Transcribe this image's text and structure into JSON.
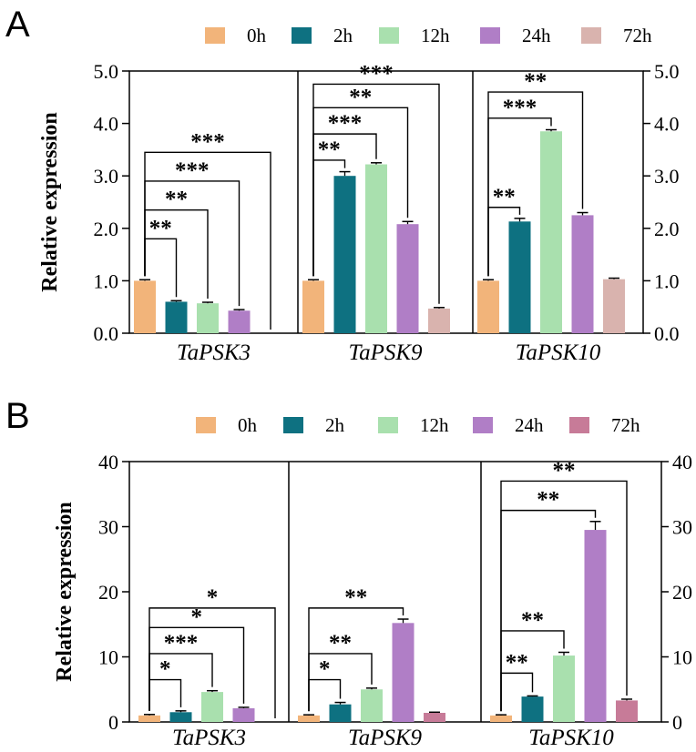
{
  "chart_data": [
    {
      "panel": "A",
      "type": "bar",
      "title": "",
      "xlabel": "",
      "ylabel": "Relative expression",
      "ylim": [
        0,
        5
      ],
      "yticks": [
        0,
        1,
        2,
        3,
        4,
        5
      ],
      "tick_labels": [
        "0.0",
        "1.0",
        "2.0",
        "3.0",
        "4.0",
        "5.0"
      ],
      "grid": false,
      "legend_position": "top",
      "legend": [
        "0h",
        "2h",
        "12h",
        "24h",
        "72h"
      ],
      "colors": [
        "#F2B47A",
        "#0E7181",
        "#A9E0AE",
        "#B07EC6",
        "#D9B3AE"
      ],
      "categories": [
        "TaPSK3",
        "TaPSK9",
        "TaPSK10"
      ],
      "series": [
        {
          "name": "0h",
          "values": [
            1.0,
            1.0,
            1.0
          ],
          "errors": [
            0.02,
            0.02,
            0.02
          ]
        },
        {
          "name": "2h",
          "values": [
            0.6,
            3.0,
            2.13
          ],
          "errors": [
            0.02,
            0.08,
            0.06
          ]
        },
        {
          "name": "12h",
          "values": [
            0.57,
            3.22,
            3.85
          ],
          "errors": [
            0.02,
            0.03,
            0.03
          ]
        },
        {
          "name": "24h",
          "values": [
            0.43,
            2.08,
            2.25
          ],
          "errors": [
            0.02,
            0.05,
            0.05
          ]
        },
        {
          "name": "72h",
          "values": [
            0.0,
            0.47,
            1.03
          ],
          "errors": [
            0,
            0.02,
            0.02
          ]
        }
      ],
      "significance": [
        {
          "gene": 0,
          "to": 1,
          "level": 1.8,
          "label": "**"
        },
        {
          "gene": 0,
          "to": 2,
          "level": 2.35,
          "label": "**"
        },
        {
          "gene": 0,
          "to": 3,
          "level": 2.9,
          "label": "***"
        },
        {
          "gene": 0,
          "to": 4,
          "level": 3.45,
          "label": "***"
        },
        {
          "gene": 1,
          "to": 1,
          "level": 3.3,
          "label": "**"
        },
        {
          "gene": 1,
          "to": 2,
          "level": 3.8,
          "label": "***"
        },
        {
          "gene": 1,
          "to": 3,
          "level": 4.3,
          "label": "**"
        },
        {
          "gene": 1,
          "to": 4,
          "level": 4.75,
          "label": "***"
        },
        {
          "gene": 2,
          "to": 1,
          "level": 2.4,
          "label": "**"
        },
        {
          "gene": 2,
          "to": 2,
          "level": 4.1,
          "label": "***"
        },
        {
          "gene": 2,
          "to": 3,
          "level": 4.6,
          "label": "**"
        }
      ]
    },
    {
      "panel": "B",
      "type": "bar",
      "title": "",
      "xlabel": "",
      "ylabel": "Relative expression",
      "ylim": [
        0,
        40
      ],
      "yticks": [
        0,
        10,
        20,
        30,
        40
      ],
      "tick_labels": [
        "0",
        "10",
        "20",
        "30",
        "40"
      ],
      "grid": false,
      "legend_position": "top",
      "legend": [
        "0h",
        "2h",
        "12h",
        "24h",
        "72h"
      ],
      "colors": [
        "#F2B47A",
        "#0E7181",
        "#A9E0AE",
        "#B07EC6",
        "#C77B98"
      ],
      "categories": [
        "TaPSK3",
        "TaPSK9",
        "TaPSK10"
      ],
      "series": [
        {
          "name": "0h",
          "values": [
            1.0,
            1.0,
            1.0
          ],
          "errors": [
            0.15,
            0.1,
            0.1
          ]
        },
        {
          "name": "2h",
          "values": [
            1.5,
            2.7,
            3.9
          ],
          "errors": [
            0.2,
            0.3,
            0.1
          ]
        },
        {
          "name": "12h",
          "values": [
            4.6,
            5.0,
            10.2
          ],
          "errors": [
            0.2,
            0.2,
            0.5
          ]
        },
        {
          "name": "24h",
          "values": [
            2.1,
            15.2,
            29.5
          ],
          "errors": [
            0.15,
            0.6,
            1.3
          ]
        },
        {
          "name": "72h",
          "values": [
            0.0,
            1.4,
            3.3
          ],
          "errors": [
            0,
            0.1,
            0.2
          ]
        }
      ],
      "significance": [
        {
          "gene": 0,
          "to": 1,
          "level": 6.5,
          "label": "*"
        },
        {
          "gene": 0,
          "to": 2,
          "level": 10.5,
          "label": "***"
        },
        {
          "gene": 0,
          "to": 3,
          "level": 14.5,
          "label": "*"
        },
        {
          "gene": 0,
          "to": 4,
          "level": 17.5,
          "label": "*"
        },
        {
          "gene": 1,
          "to": 1,
          "level": 6.5,
          "label": "*"
        },
        {
          "gene": 1,
          "to": 2,
          "level": 10.5,
          "label": "**"
        },
        {
          "gene": 1,
          "to": 3,
          "level": 17.5,
          "label": "**"
        },
        {
          "gene": 2,
          "to": 1,
          "level": 7.5,
          "label": "**"
        },
        {
          "gene": 2,
          "to": 2,
          "level": 14.0,
          "label": "**"
        },
        {
          "gene": 2,
          "to": 3,
          "level": 32.5,
          "label": "**"
        },
        {
          "gene": 2,
          "to": 4,
          "level": 37.0,
          "label": "**"
        }
      ]
    }
  ]
}
